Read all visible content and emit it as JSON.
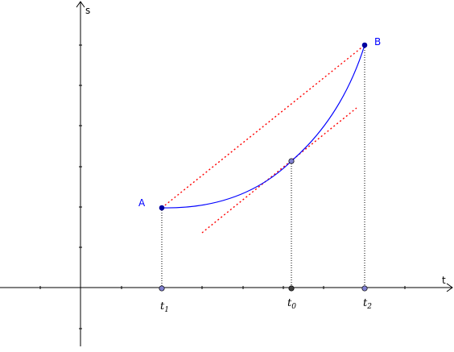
{
  "axes": {
    "x_label": "t",
    "y_label": "s"
  },
  "points": {
    "A": {
      "label": "A"
    },
    "B": {
      "label": "B"
    }
  },
  "t_ticks": [
    {
      "main": "t",
      "sub": "1"
    },
    {
      "main": "t",
      "sub": "0"
    },
    {
      "main": "t",
      "sub": "2"
    }
  ],
  "colors": {
    "curve": "#0000ff",
    "point_fill": "#0000a0",
    "secant": "#ff0000",
    "tangent": "#ff0000",
    "axis": "#000000",
    "grey_point": "#8080d0",
    "t0_point": "#404040"
  }
}
